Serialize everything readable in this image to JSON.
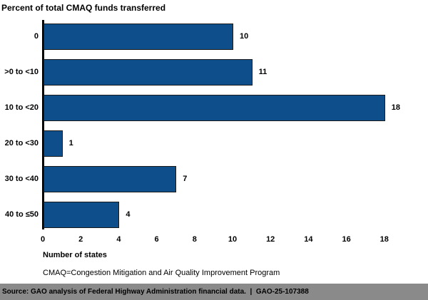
{
  "chart_data": {
    "type": "bar",
    "orientation": "horizontal",
    "title": "Percent of total CMAQ funds transferred",
    "categories": [
      "0",
      ">0 to <10",
      "10 to <20",
      "20 to <30",
      "30 to <40",
      "40 to ≤50"
    ],
    "values": [
      10,
      11,
      18,
      1,
      7,
      4
    ],
    "xlabel": "Number of states",
    "xticks": [
      0,
      2,
      4,
      6,
      8,
      10,
      12,
      14,
      16,
      18
    ],
    "xlim": [
      0,
      18
    ],
    "grid": "off",
    "legend": "none",
    "bar_color": "#0e4f8b",
    "bar_border_color": "#1a1a1a",
    "axis_color": "#000000",
    "note": "CMAQ=Congestion Mitigation and Air Quality Improvement Program",
    "source": "Source: GAO analysis of Federal Highway Administration financial data.  |  GAO-25-107388",
    "source_bg_color": "#8a8a8a"
  }
}
